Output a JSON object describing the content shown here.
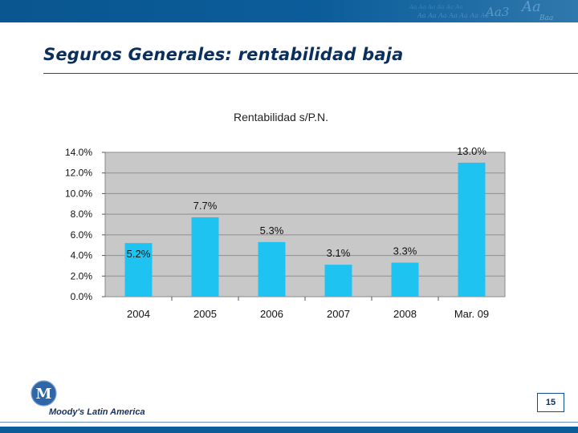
{
  "slide": {
    "title": "Seguros Generales: rentabilidad baja",
    "page_number": "15",
    "brand": "Moody's Latin America",
    "logo_text": "M"
  },
  "colors": {
    "header_bar": "#0b5d9a",
    "title": "#0b2f5c",
    "bar_fill": "#1ec3f2",
    "plot_bg": "#c8c8c8"
  },
  "chart_data": {
    "type": "bar",
    "title": "Rentabilidad s/P.N.",
    "categories": [
      "2004",
      "2005",
      "2006",
      "2007",
      "2008",
      "Mar. 09"
    ],
    "values": [
      5.2,
      7.7,
      5.3,
      3.1,
      3.3,
      13.0
    ],
    "value_labels": [
      "5.2%",
      "7.7%",
      "5.3%",
      "3.1%",
      "3.3%",
      "13.0%"
    ],
    "ylim": [
      0,
      14
    ],
    "y_ticks": [
      "0.0%",
      "2.0%",
      "4.0%",
      "6.0%",
      "8.0%",
      "10.0%",
      "12.0%",
      "14.0%"
    ],
    "xlabel": "",
    "ylabel": "",
    "grid": true
  }
}
